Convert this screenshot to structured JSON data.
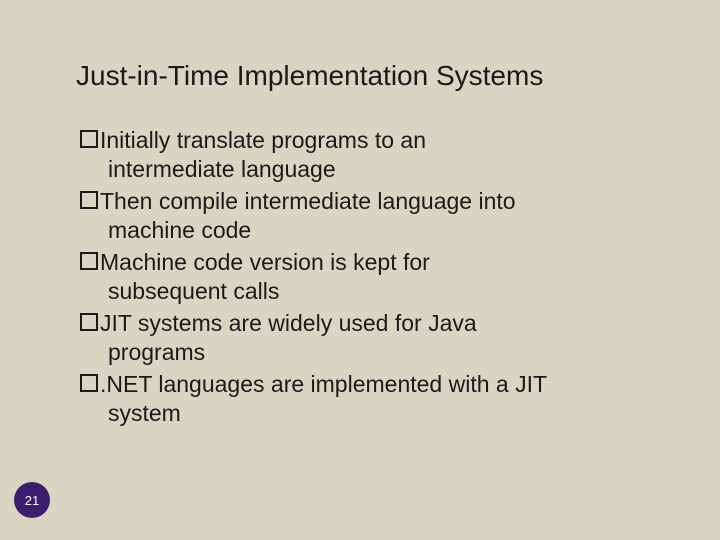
{
  "background_color": "#d8d6c2",
  "corner_radius": 40,
  "title": {
    "text": "Just-in-Time Implementation Systems",
    "fontsize": 28,
    "color": "#1a1a1a"
  },
  "bullets": {
    "fontsize": 23,
    "color": "#1a1a1a",
    "marker": "hollow-square",
    "items": [
      {
        "line1": "Initially translate programs to an",
        "line2": "intermediate language"
      },
      {
        "line1": "Then compile intermediate language into",
        "line2": "machine code"
      },
      {
        "line1": "Machine code version is kept for",
        "line2": "subsequent calls"
      },
      {
        "line1": "JIT systems are widely used for Java",
        "line2": "programs"
      },
      {
        "line1": ".NET languages are implemented with a JIT",
        "line2": "system"
      }
    ]
  },
  "page_badge": {
    "number": "21",
    "bg_color": "#3b1e6d",
    "text_color": "#ffffff",
    "fontsize": 13
  }
}
